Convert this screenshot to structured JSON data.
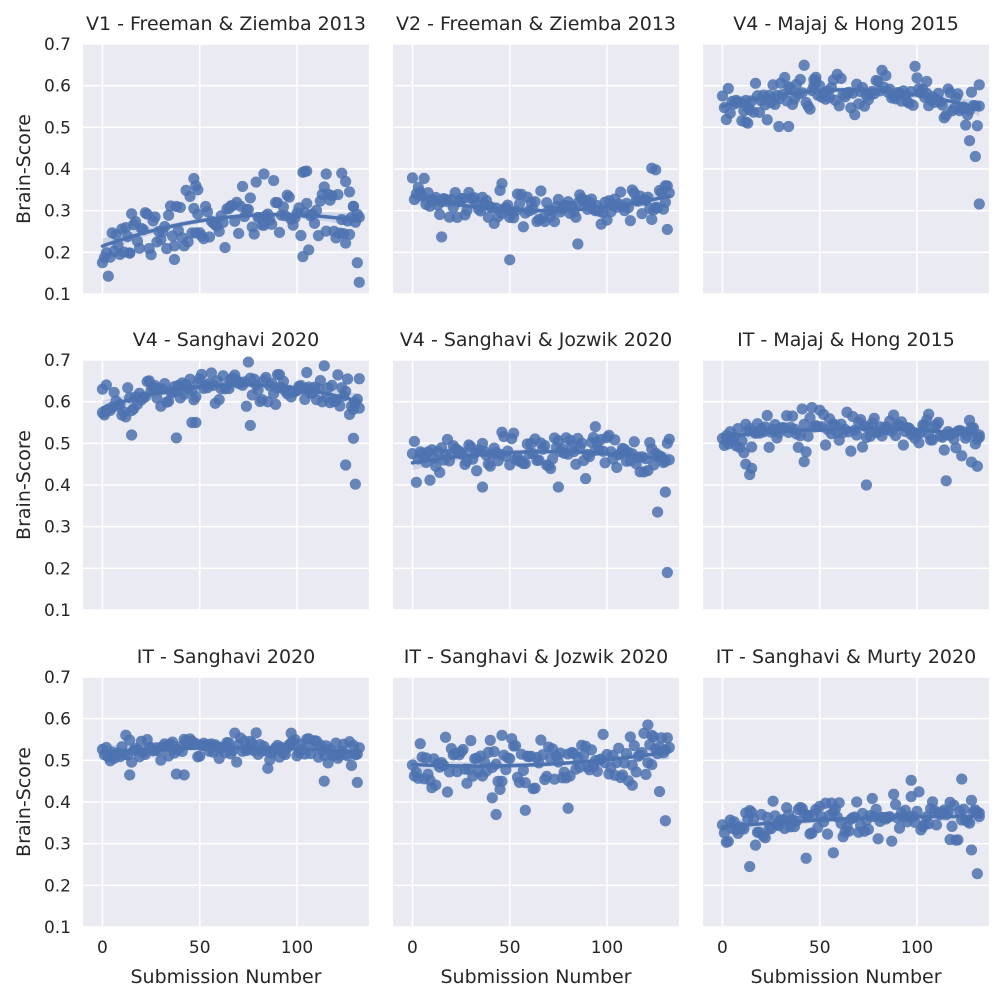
{
  "chart_data": {
    "type": "scatter",
    "layout": "grid-3x3",
    "ylabel": "Brain-Score",
    "xlabel": "Submission Number",
    "ylim": [
      0.1,
      0.7
    ],
    "yticks": [
      "0.1",
      "0.2",
      "0.3",
      "0.4",
      "0.5",
      "0.6",
      "0.7"
    ],
    "xlim": [
      -10,
      137
    ],
    "xticks": [
      "0",
      "50",
      "100"
    ],
    "grid": true,
    "n_points": 132,
    "color": "#4c72b0",
    "background": "#eaeaf2",
    "panels": [
      {
        "title": "V1 - Freeman & Ziemba 2013",
        "trend": {
          "start": 0.215,
          "mid": 0.285,
          "end": 0.275,
          "noise": 0.035,
          "seed": 11
        },
        "outliers": [
          [
            47,
            0.377
          ],
          [
            48,
            0.36
          ],
          [
            49,
            0.35
          ],
          [
            83,
            0.388
          ],
          [
            103,
            0.392
          ],
          [
            104,
            0.394
          ],
          [
            105,
            0.395
          ],
          [
            115,
            0.388
          ],
          [
            123,
            0.39
          ],
          [
            125,
            0.37
          ],
          [
            127,
            0.345
          ],
          [
            129,
            0.31
          ],
          [
            131,
            0.175
          ],
          [
            132,
            0.128
          ],
          [
            37,
            0.183
          ],
          [
            14,
            0.198
          ]
        ]
      },
      {
        "title": "V2 - Freeman & Ziemba 2013",
        "trend": {
          "start": 0.335,
          "mid": 0.3,
          "end": 0.335,
          "noise": 0.022,
          "seed": 23
        },
        "outliers": [
          [
            15,
            0.237
          ],
          [
            50,
            0.182
          ],
          [
            85,
            0.22
          ],
          [
            46,
            0.365
          ],
          [
            123,
            0.402
          ],
          [
            125,
            0.398
          ],
          [
            130,
            0.36
          ],
          [
            131,
            0.255
          ]
        ]
      },
      {
        "title": "V4 - Majaj & Hong 2015",
        "trend": {
          "start": 0.55,
          "mid": 0.59,
          "end": 0.545,
          "noise": 0.022,
          "seed": 37
        },
        "outliers": [
          [
            12,
            0.513
          ],
          [
            13,
            0.51
          ],
          [
            29,
            0.502
          ],
          [
            34,
            0.502
          ],
          [
            47,
            0.6
          ],
          [
            48,
            0.62
          ],
          [
            105,
            0.61
          ],
          [
            132,
            0.602
          ],
          [
            127,
            0.468
          ],
          [
            130,
            0.43
          ],
          [
            132,
            0.316
          ]
        ]
      },
      {
        "title": "V4 - Sanghavi 2020",
        "trend": {
          "start": 0.585,
          "mid": 0.64,
          "end": 0.6,
          "noise": 0.02,
          "seed": 41
        },
        "outliers": [
          [
            0,
            0.63
          ],
          [
            2,
            0.64
          ],
          [
            15,
            0.52
          ],
          [
            38,
            0.513
          ],
          [
            46,
            0.55
          ],
          [
            48,
            0.55
          ],
          [
            76,
            0.543
          ],
          [
            90,
            0.665
          ],
          [
            105,
            0.67
          ],
          [
            125,
            0.448
          ],
          [
            129,
            0.512
          ],
          [
            130,
            0.402
          ],
          [
            132,
            0.655
          ]
        ]
      },
      {
        "title": "V4 - Sanghavi & Jozwik 2020",
        "trend": {
          "start": 0.453,
          "mid": 0.48,
          "end": 0.46,
          "noise": 0.022,
          "seed": 53
        },
        "outliers": [
          [
            36,
            0.395
          ],
          [
            75,
            0.395
          ],
          [
            94,
            0.54
          ],
          [
            126,
            0.335
          ],
          [
            130,
            0.383
          ],
          [
            131,
            0.19
          ],
          [
            132,
            0.51
          ]
        ]
      },
      {
        "title": "IT - Majaj & Hong 2015",
        "trend": {
          "start": 0.515,
          "mid": 0.535,
          "end": 0.52,
          "noise": 0.02,
          "seed": 67
        },
        "outliers": [
          [
            12,
            0.45
          ],
          [
            14,
            0.425
          ],
          [
            15,
            0.44
          ],
          [
            42,
            0.456
          ],
          [
            74,
            0.4
          ],
          [
            115,
            0.41
          ],
          [
            106,
            0.57
          ],
          [
            128,
            0.455
          ],
          [
            131,
            0.445
          ],
          [
            132,
            0.52
          ]
        ]
      },
      {
        "title": "IT - Sanghavi 2020",
        "trend": {
          "start": 0.52,
          "mid": 0.53,
          "end": 0.52,
          "noise": 0.016,
          "seed": 71
        },
        "outliers": [
          [
            14,
            0.465
          ],
          [
            38,
            0.467
          ],
          [
            42,
            0.465
          ],
          [
            114,
            0.45
          ],
          [
            131,
            0.447
          ],
          [
            97,
            0.565
          ]
        ]
      },
      {
        "title": "IT - Sanghavi & Jozwik 2020",
        "trend": {
          "start": 0.49,
          "mid": 0.49,
          "end": 0.52,
          "noise": 0.03,
          "seed": 83
        },
        "outliers": [
          [
            41,
            0.41
          ],
          [
            43,
            0.37
          ],
          [
            46,
            0.56
          ],
          [
            58,
            0.38
          ],
          [
            80,
            0.385
          ],
          [
            121,
            0.585
          ],
          [
            123,
            0.56
          ],
          [
            127,
            0.425
          ],
          [
            130,
            0.355
          ],
          [
            113,
            0.44
          ]
        ]
      },
      {
        "title": "IT - Sanghavi & Murty 2020",
        "trend": {
          "start": 0.34,
          "mid": 0.36,
          "end": 0.365,
          "noise": 0.025,
          "seed": 97
        },
        "outliers": [
          [
            14,
            0.245
          ],
          [
            43,
            0.265
          ],
          [
            57,
            0.278
          ],
          [
            97,
            0.452
          ],
          [
            123,
            0.455
          ],
          [
            128,
            0.285
          ],
          [
            131,
            0.228
          ],
          [
            132,
            0.365
          ],
          [
            117,
            0.31
          ]
        ]
      }
    ]
  }
}
